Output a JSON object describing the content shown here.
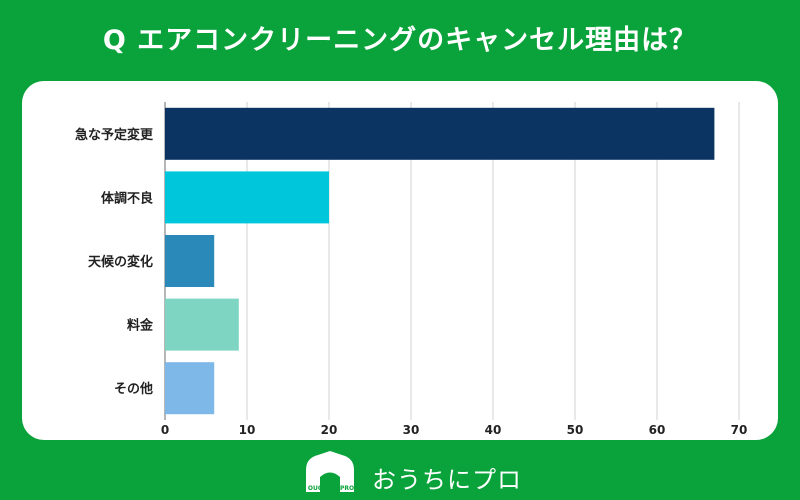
{
  "header": {
    "title": "Q エアコンクリーニングのキャンセル理由は？"
  },
  "footer": {
    "brand": "おうちにプロ",
    "logo_text": "OUCHI ni PRO"
  },
  "colors": {
    "background": "#0aa33b",
    "card": "#ffffff",
    "grid": "#e0e0e0"
  },
  "chart_data": {
    "type": "bar",
    "orientation": "horizontal",
    "categories": [
      "急な予定変更",
      "体調不良",
      "天候の変化",
      "料金",
      "その他"
    ],
    "values": [
      67,
      20,
      6,
      9,
      6
    ],
    "bar_colors": [
      "#0b3462",
      "#00c6dc",
      "#2a89b8",
      "#7dd5c2",
      "#7db8e8"
    ],
    "x_ticks": [
      0,
      10,
      20,
      30,
      40,
      50,
      60,
      70
    ],
    "xlim": [
      0,
      70
    ],
    "grid": true,
    "legend": "none"
  }
}
